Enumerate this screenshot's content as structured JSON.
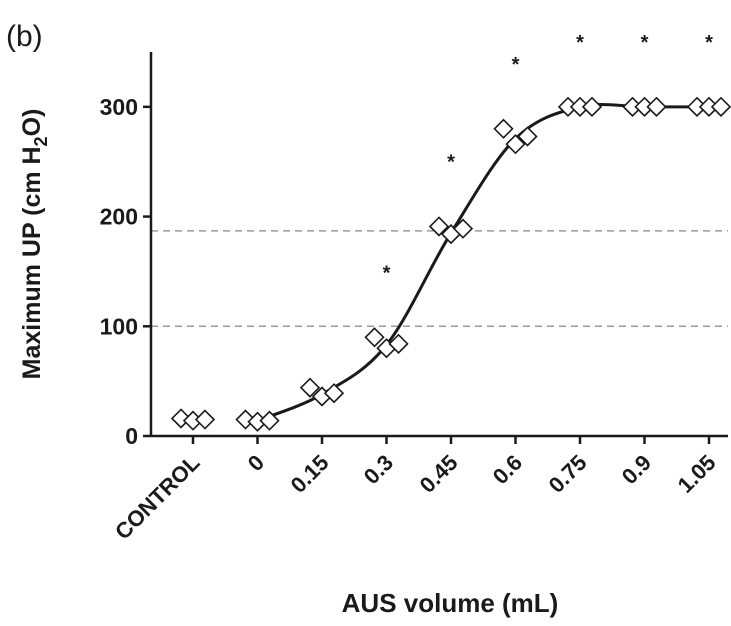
{
  "chart_data": {
    "type": "scatter",
    "panel_label": "(b)",
    "xlabel": "AUS volume (mL)",
    "ylabel_parts": [
      "Maximum UP (cm H",
      "2",
      "O)"
    ],
    "ylim": [
      0,
      350
    ],
    "yticks": [
      0,
      100,
      200,
      300
    ],
    "categories": [
      "CONTROL",
      "0",
      "0.15",
      "0.3",
      "0.45",
      "0.6",
      "0.75",
      "0.9",
      "1.05"
    ],
    "reference_lines": [
      100,
      187
    ],
    "significance_marker": "*",
    "significant_categories": [
      "0.3",
      "0.45",
      "0.6",
      "0.75",
      "0.9",
      "1.05"
    ],
    "series": [
      {
        "marker": "diamond",
        "points": [
          {
            "category": "CONTROL",
            "values": [
              16,
              14,
              15
            ]
          },
          {
            "category": "0",
            "values": [
              15,
              13,
              14
            ]
          },
          {
            "category": "0.15",
            "values": [
              44,
              36,
              39
            ]
          },
          {
            "category": "0.3",
            "values": [
              90,
              80,
              84
            ]
          },
          {
            "category": "0.45",
            "values": [
              191,
              184,
              189
            ]
          },
          {
            "category": "0.6",
            "values": [
              280,
              266,
              273
            ]
          },
          {
            "category": "0.75",
            "values": [
              300,
              300,
              300
            ]
          },
          {
            "category": "0.9",
            "values": [
              300,
              300,
              300
            ]
          },
          {
            "category": "1.05",
            "values": [
              300,
              300,
              300
            ]
          }
        ]
      }
    ],
    "fit_line": {
      "categories": [
        "0",
        "0.15",
        "0.3",
        "0.45",
        "0.6",
        "0.75",
        "0.9",
        "1.05"
      ],
      "values": [
        14,
        38,
        83,
        185,
        271,
        300,
        300,
        300
      ]
    }
  }
}
